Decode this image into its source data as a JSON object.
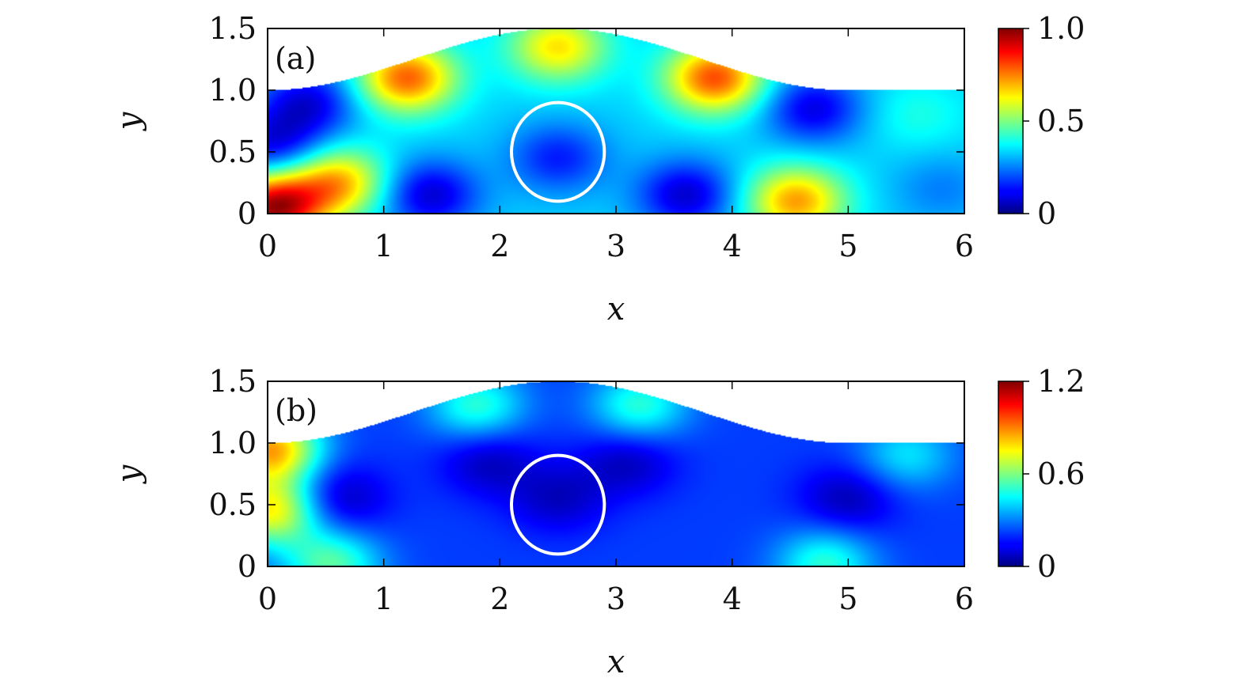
{
  "chart_data": [
    {
      "type": "heatmap",
      "panel_label": "(a)",
      "xlabel": "x",
      "ylabel": "y",
      "xlim": [
        0,
        6
      ],
      "ylim": [
        0,
        1.5
      ],
      "xticks": [
        "0",
        "1",
        "2",
        "3",
        "4",
        "5",
        "6"
      ],
      "yticks": [
        "0",
        "0.5",
        "1.0",
        "1.5"
      ],
      "colorbar": {
        "min": 0,
        "max": 1.0,
        "ticks": [
          "0",
          "0.5",
          "1.0"
        ],
        "colormap": "jet"
      },
      "domain": {
        "bottom_wall": 0,
        "top_wall": {
          "flat_height": 1.0,
          "bump_start_x": 0,
          "bump_peak_x": 2.5,
          "bump_peak_y": 1.5,
          "bump_end_x": 5.0
        }
      },
      "obstacle_circle": {
        "center": [
          2.5,
          0.5
        ],
        "radius": 0.4,
        "color": "#ffffff"
      },
      "field_features": [
        {
          "x": 0.05,
          "y": 0.05,
          "value": 0.95
        },
        {
          "x": 0.6,
          "y": 0.25,
          "value": 0.7
        },
        {
          "x": 1.2,
          "y": 1.1,
          "value": 0.78
        },
        {
          "x": 2.5,
          "y": 1.35,
          "value": 0.65
        },
        {
          "x": 3.85,
          "y": 1.1,
          "value": 0.8
        },
        {
          "x": 4.55,
          "y": 0.1,
          "value": 0.72
        },
        {
          "x": 0.35,
          "y": 0.9,
          "value": 0.1
        },
        {
          "x": 0.05,
          "y": 0.55,
          "value": 0.1
        },
        {
          "x": 1.4,
          "y": 0.15,
          "value": 0.08
        },
        {
          "x": 3.6,
          "y": 0.15,
          "value": 0.08
        },
        {
          "x": 4.7,
          "y": 0.85,
          "value": 0.1
        },
        {
          "x": 2.5,
          "y": 0.45,
          "value": 0.15
        },
        {
          "x": 5.8,
          "y": 0.2,
          "value": 0.25
        },
        {
          "x": 5.6,
          "y": 0.8,
          "value": 0.4
        }
      ],
      "background_value": 0.33
    },
    {
      "type": "heatmap",
      "panel_label": "(b)",
      "xlabel": "x",
      "ylabel": "y",
      "xlim": [
        0,
        6
      ],
      "ylim": [
        0,
        1.5
      ],
      "xticks": [
        "0",
        "1",
        "2",
        "3",
        "4",
        "5",
        "6"
      ],
      "yticks": [
        "0",
        "0.5",
        "1.0",
        "1.5"
      ],
      "colorbar": {
        "min": 0,
        "max": 1.2,
        "ticks": [
          "0",
          "0.6",
          "1.2"
        ],
        "colormap": "jet"
      },
      "domain": {
        "bottom_wall": 0,
        "top_wall": {
          "flat_height": 1.0,
          "bump_start_x": 0,
          "bump_peak_x": 2.5,
          "bump_peak_y": 1.5,
          "bump_end_x": 5.0
        }
      },
      "obstacle_circle": {
        "center": [
          2.5,
          0.5
        ],
        "radius": 0.4,
        "color": "#ffffff"
      },
      "field_features": [
        {
          "x": 0.03,
          "y": 0.95,
          "value": 0.85
        },
        {
          "x": 0.03,
          "y": 0.45,
          "value": 0.75
        },
        {
          "x": 0.55,
          "y": 0.02,
          "value": 0.55
        },
        {
          "x": 1.8,
          "y": 1.3,
          "value": 0.5
        },
        {
          "x": 3.2,
          "y": 1.3,
          "value": 0.5
        },
        {
          "x": 4.8,
          "y": 0.02,
          "value": 0.5
        },
        {
          "x": 5.5,
          "y": 0.9,
          "value": 0.42
        },
        {
          "x": 0.6,
          "y": 0.55,
          "value": 0.05
        },
        {
          "x": 1.9,
          "y": 0.85,
          "value": 0.07
        },
        {
          "x": 3.1,
          "y": 0.85,
          "value": 0.07
        },
        {
          "x": 2.5,
          "y": 0.55,
          "value": 0.08
        },
        {
          "x": 5.0,
          "y": 0.55,
          "value": 0.06
        }
      ],
      "background_value": 0.22
    }
  ]
}
